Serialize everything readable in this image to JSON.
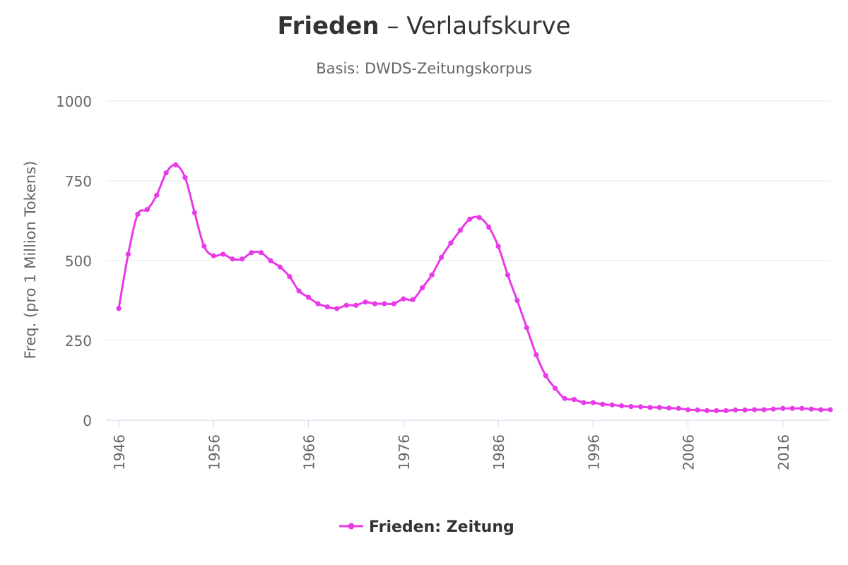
{
  "chart_data": {
    "type": "line",
    "title": {
      "keyword": "Frieden",
      "rest": " – Verlaufskurve"
    },
    "subtitle": "Basis: DWDS-Zeitungskorpus",
    "ylabel": "Freq. (pro 1 Million Tokens)",
    "xlabel": "",
    "xlim": [
      1946,
      2021
    ],
    "ylim": [
      0,
      1000
    ],
    "yticks": [
      "0",
      "250",
      "500",
      "750",
      "1000"
    ],
    "xticks": [
      "1946",
      "1956",
      "1966",
      "1976",
      "1986",
      "1996",
      "2006",
      "2016"
    ],
    "grid": true,
    "legend_position": "bottom-center",
    "series": [
      {
        "name": "Frieden: Zeitung",
        "color": "#e83ae8",
        "x": [
          1946,
          1947,
          1948,
          1949,
          1950,
          1951,
          1952,
          1953,
          1954,
          1955,
          1956,
          1957,
          1958,
          1959,
          1960,
          1961,
          1962,
          1963,
          1964,
          1965,
          1966,
          1967,
          1968,
          1969,
          1970,
          1971,
          1972,
          1973,
          1974,
          1975,
          1976,
          1977,
          1978,
          1979,
          1980,
          1981,
          1982,
          1983,
          1984,
          1985,
          1986,
          1987,
          1988,
          1989,
          1990,
          1991,
          1992,
          1993,
          1994,
          1995,
          1996,
          1997,
          1998,
          1999,
          2000,
          2001,
          2002,
          2003,
          2004,
          2005,
          2006,
          2007,
          2008,
          2009,
          2010,
          2011,
          2012,
          2013,
          2014,
          2015,
          2016,
          2017,
          2018,
          2019,
          2020,
          2021
        ],
        "values": [
          350,
          520,
          645,
          660,
          705,
          775,
          800,
          760,
          650,
          545,
          515,
          520,
          505,
          505,
          525,
          525,
          500,
          480,
          450,
          405,
          385,
          365,
          355,
          350,
          360,
          360,
          370,
          365,
          365,
          365,
          380,
          378,
          415,
          455,
          510,
          555,
          595,
          630,
          635,
          605,
          545,
          455,
          375,
          290,
          205,
          140,
          100,
          68,
          65,
          55,
          55,
          50,
          48,
          45,
          43,
          42,
          40,
          40,
          38,
          37,
          33,
          32,
          30,
          30,
          30,
          32,
          32,
          33,
          33,
          35,
          37,
          37,
          37,
          35,
          33,
          33
        ]
      }
    ]
  }
}
